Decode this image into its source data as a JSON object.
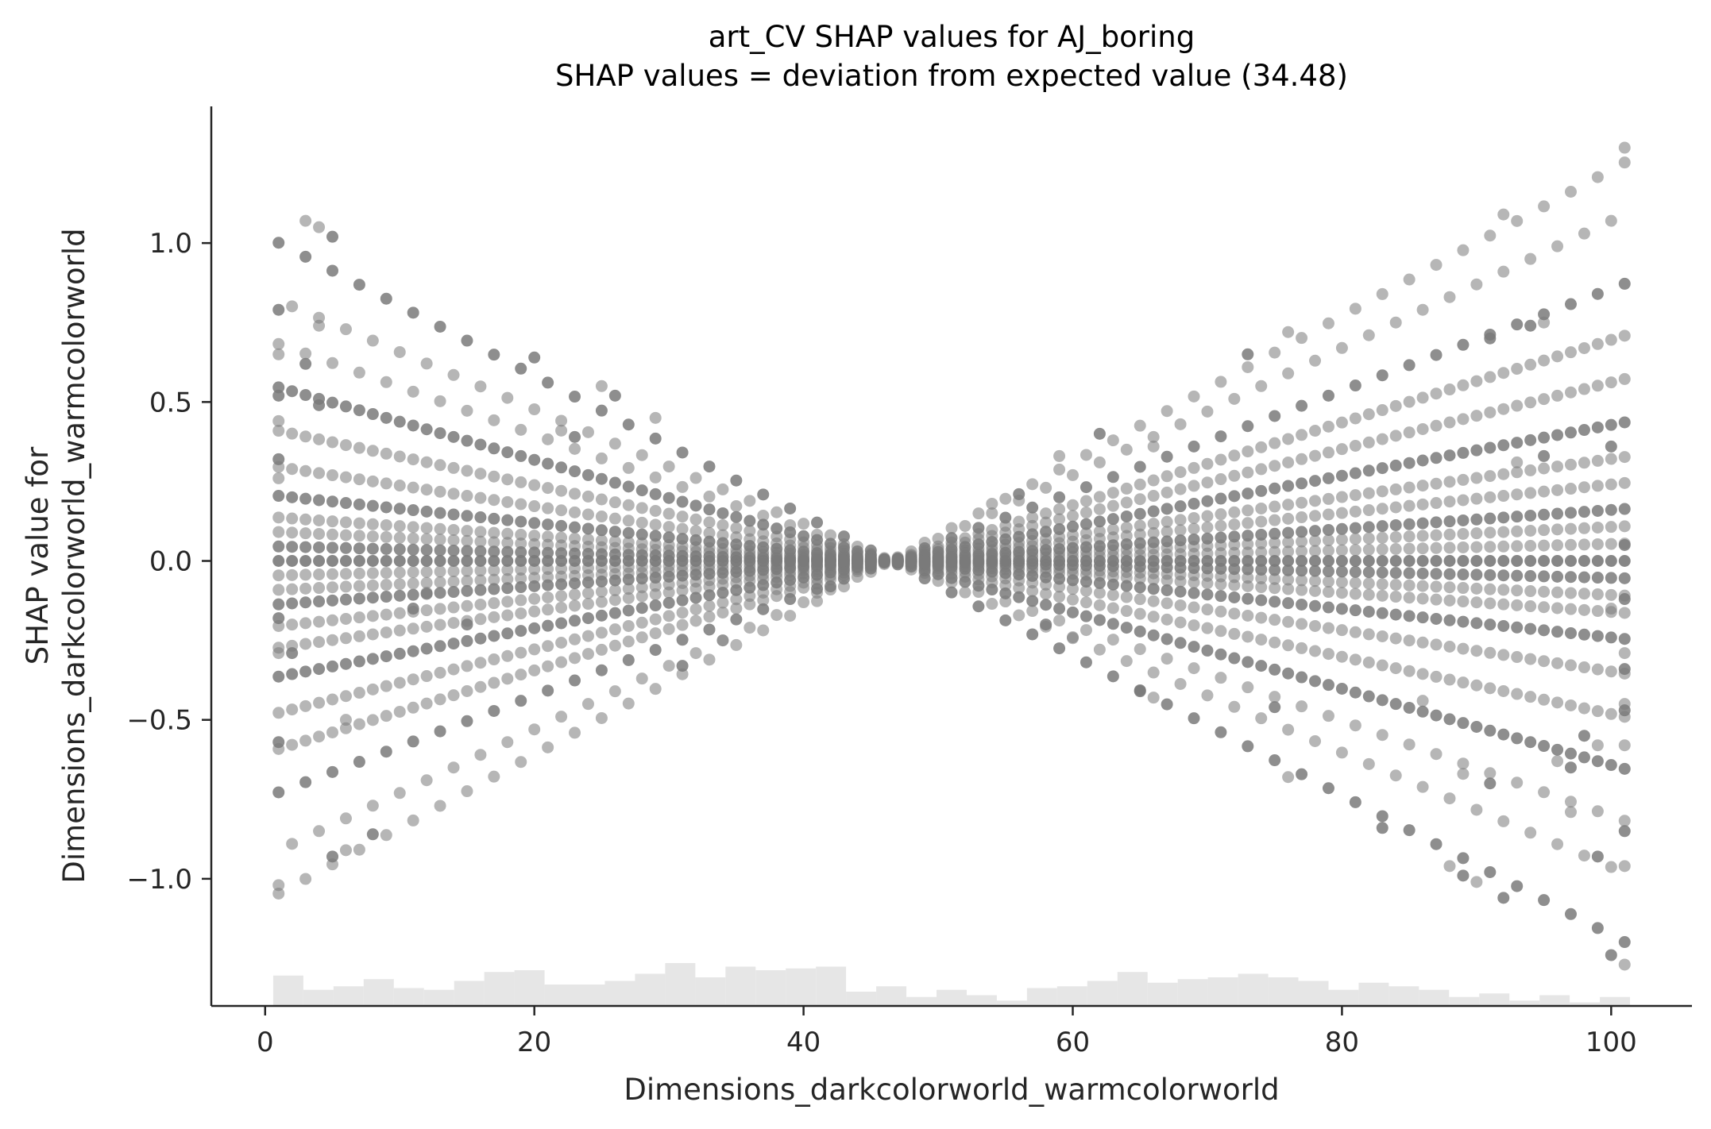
{
  "chart_data": {
    "type": "scatter",
    "title": "art_CV SHAP values for AJ_boring",
    "subtitle": "SHAP values = deviation from expected value (34.48)",
    "xlabel": "Dimensions_darkcolorworld_warmcolorworld",
    "ylabel_line1": "SHAP value for",
    "ylabel_line2": "Dimensions_darkcolorworld_warmcolorworld",
    "xlim": [
      -4,
      106
    ],
    "ylim": [
      -1.4,
      1.43
    ],
    "x_ticks": [
      0,
      20,
      40,
      60,
      80,
      100
    ],
    "x_tick_labels": [
      "0",
      "20",
      "40",
      "60",
      "80",
      "100"
    ],
    "y_ticks": [
      -1.0,
      -0.5,
      0.0,
      0.5,
      1.0
    ],
    "y_tick_labels": [
      "−1.0",
      "−0.5",
      "0.0",
      "0.5",
      "1.0"
    ],
    "grid": false,
    "point_color": "#7a7a7a",
    "histogram_color": "#e6e6e6",
    "axis_color": "#262626",
    "expected_value": 34.48,
    "pivot_x": 46.5,
    "fan_slopes": [
      -0.022,
      -0.018,
      -0.015,
      -0.012,
      -0.009,
      -0.0065,
      -0.0045,
      -0.003,
      -0.002,
      -0.001,
      0.001,
      0.002,
      0.003,
      0.0045,
      0.006,
      0.008,
      0.0105,
      0.013,
      0.016,
      0.02,
      0.023
    ],
    "extra_points": [
      {
        "x": 1,
        "y": 0.79
      },
      {
        "x": 1,
        "y": 0.65
      },
      {
        "x": 1,
        "y": 0.52
      },
      {
        "x": 1,
        "y": 0.44
      },
      {
        "x": 1,
        "y": 0.32
      },
      {
        "x": 1,
        "y": 0.26
      },
      {
        "x": 1,
        "y": -0.18
      },
      {
        "x": 1,
        "y": -0.29
      },
      {
        "x": 1,
        "y": -0.57
      },
      {
        "x": 1,
        "y": -1.02
      },
      {
        "x": 2,
        "y": -0.29
      },
      {
        "x": 3,
        "y": 1.07
      },
      {
        "x": 3,
        "y": 0.62
      },
      {
        "x": 4,
        "y": 1.05
      },
      {
        "x": 5,
        "y": 1.02
      },
      {
        "x": 4,
        "y": 0.74
      },
      {
        "x": 4,
        "y": 0.49
      },
      {
        "x": 25,
        "y": 0.55
      },
      {
        "x": 26,
        "y": 0.52
      },
      {
        "x": 29,
        "y": 0.45
      },
      {
        "x": 20,
        "y": 0.64
      },
      {
        "x": 22,
        "y": 0.41
      },
      {
        "x": 23,
        "y": 0.39
      },
      {
        "x": 54,
        "y": 0.18
      },
      {
        "x": 56,
        "y": 0.21
      },
      {
        "x": 59,
        "y": 0.33
      },
      {
        "x": 62,
        "y": 0.4
      },
      {
        "x": 66,
        "y": 0.36
      },
      {
        "x": 73,
        "y": 0.65
      },
      {
        "x": 76,
        "y": 0.72
      },
      {
        "x": 91,
        "y": 0.7
      },
      {
        "x": 92,
        "y": 1.09
      },
      {
        "x": 94,
        "y": 0.74
      },
      {
        "x": 95,
        "y": 0.75
      },
      {
        "x": 95,
        "y": 0.33
      },
      {
        "x": 93,
        "y": 0.31
      },
      {
        "x": 100,
        "y": 0.36
      },
      {
        "x": 101,
        "y": 1.3
      },
      {
        "x": 101,
        "y": 0.05
      },
      {
        "x": 100,
        "y": -0.15
      },
      {
        "x": 101,
        "y": -0.12
      },
      {
        "x": 101,
        "y": -0.29
      },
      {
        "x": 101,
        "y": -0.34
      },
      {
        "x": 101,
        "y": -0.45
      },
      {
        "x": 101,
        "y": -0.47
      },
      {
        "x": 101,
        "y": -0.58
      },
      {
        "x": 101,
        "y": -0.85
      },
      {
        "x": 101,
        "y": -0.96
      },
      {
        "x": 100,
        "y": -1.24
      },
      {
        "x": 101,
        "y": -1.27
      },
      {
        "x": 98,
        "y": -0.55
      },
      {
        "x": 99,
        "y": -0.58
      },
      {
        "x": 99,
        "y": -0.93
      },
      {
        "x": 96,
        "y": -0.63
      },
      {
        "x": 97,
        "y": -0.65
      },
      {
        "x": 97,
        "y": -0.79
      },
      {
        "x": 91,
        "y": -0.7
      },
      {
        "x": 89,
        "y": -0.67
      },
      {
        "x": 92,
        "y": -1.06
      },
      {
        "x": 88,
        "y": -0.96
      },
      {
        "x": 89,
        "y": -0.99
      },
      {
        "x": 90,
        "y": -1.01
      },
      {
        "x": 83,
        "y": -0.84
      },
      {
        "x": 86,
        "y": -0.44
      },
      {
        "x": 75,
        "y": -0.46
      },
      {
        "x": 76,
        "y": -0.68
      },
      {
        "x": 65,
        "y": -0.41
      },
      {
        "x": 66,
        "y": -0.43
      },
      {
        "x": 58,
        "y": -0.2
      },
      {
        "x": 60,
        "y": -0.24
      },
      {
        "x": 11,
        "y": -0.15
      },
      {
        "x": 12,
        "y": -0.1
      },
      {
        "x": 15,
        "y": -0.2
      },
      {
        "x": 6,
        "y": -0.5
      },
      {
        "x": 5,
        "y": -0.93
      },
      {
        "x": 6,
        "y": -0.91
      },
      {
        "x": 8,
        "y": -0.86
      },
      {
        "x": 34,
        "y": -0.25
      },
      {
        "x": 31,
        "y": -0.33
      },
      {
        "x": 41,
        "y": -0.1
      },
      {
        "x": 42,
        "y": -0.08
      }
    ],
    "histogram": [
      0.85,
      0.45,
      0.55,
      0.75,
      0.5,
      0.45,
      0.7,
      0.95,
      1.0,
      0.6,
      0.6,
      0.7,
      0.9,
      1.2,
      0.8,
      1.1,
      1.0,
      1.05,
      1.1,
      0.4,
      0.55,
      0.25,
      0.45,
      0.3,
      0.15,
      0.5,
      0.55,
      0.7,
      0.95,
      0.65,
      0.75,
      0.8,
      0.9,
      0.8,
      0.7,
      0.45,
      0.65,
      0.55,
      0.45,
      0.25,
      0.35,
      0.15,
      0.3,
      0.1,
      0.25
    ]
  }
}
